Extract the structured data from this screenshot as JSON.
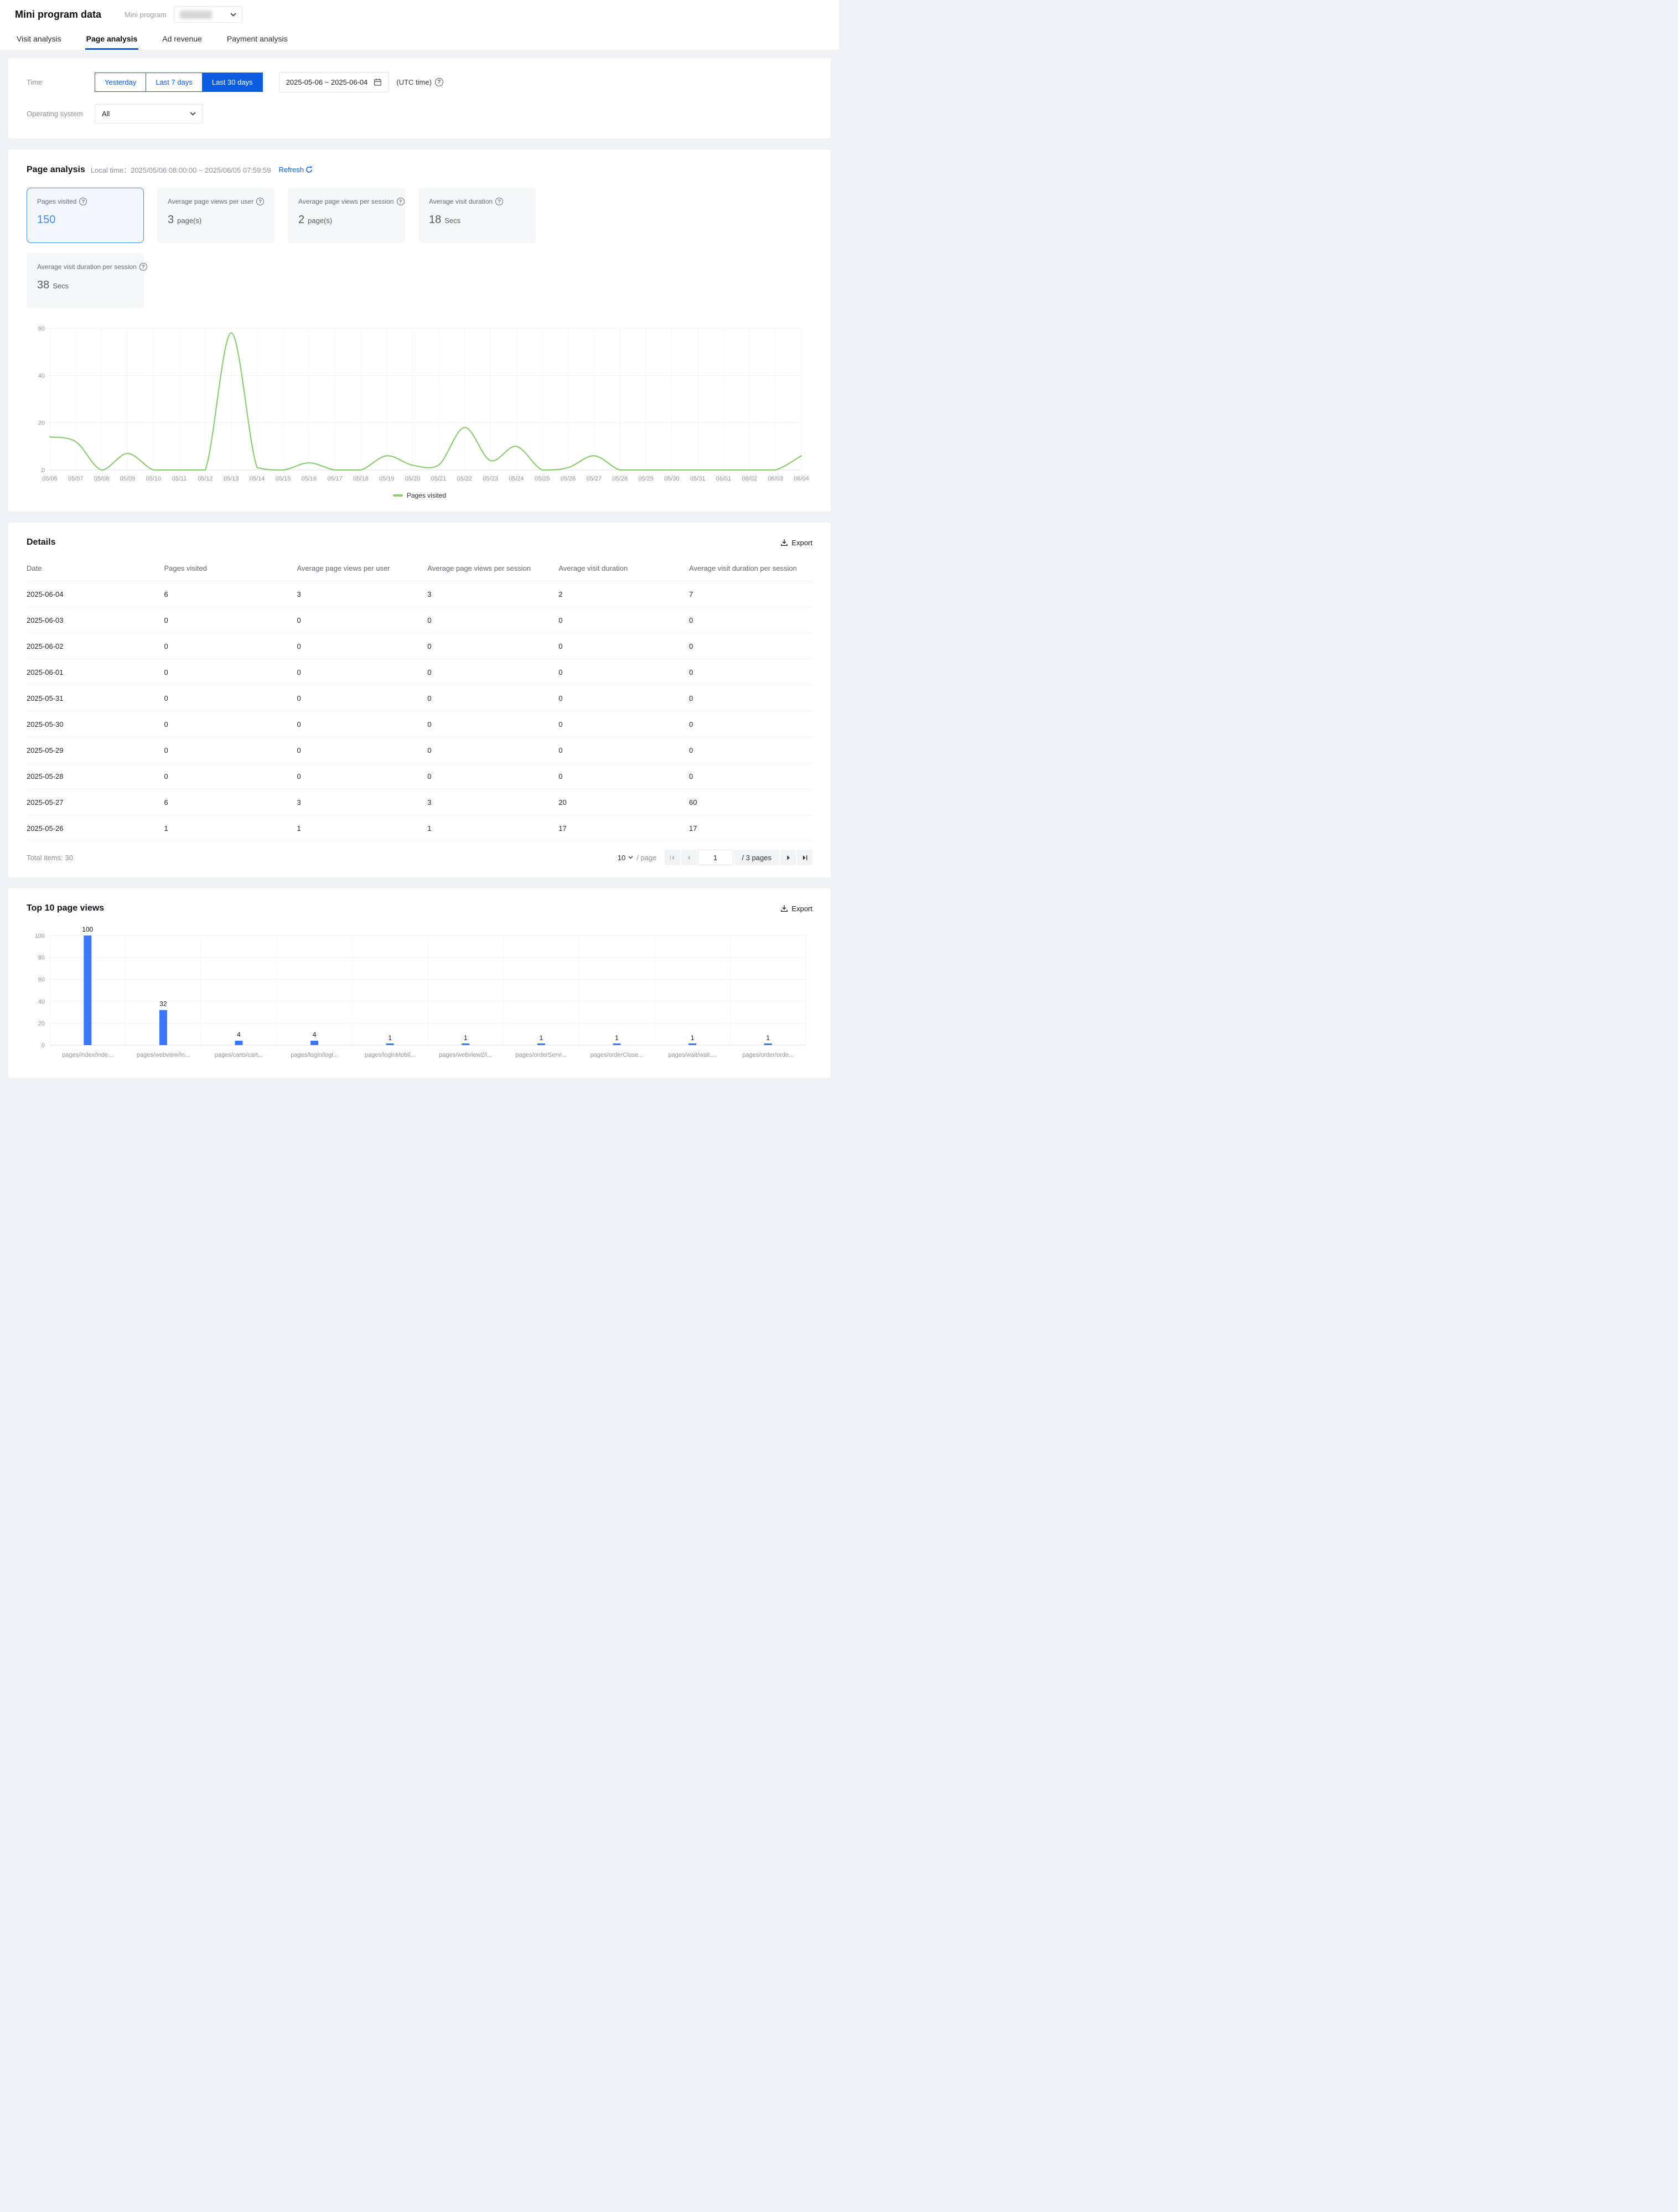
{
  "header": {
    "title": "Mini program data",
    "mini_program_label": "Mini program"
  },
  "tabs": [
    {
      "label": "Visit analysis",
      "active": false
    },
    {
      "label": "Page analysis",
      "active": true
    },
    {
      "label": "Ad revenue",
      "active": false
    },
    {
      "label": "Payment analysis",
      "active": false
    }
  ],
  "filters": {
    "time_label": "Time",
    "time_options": [
      "Yesterday",
      "Last 7 days",
      "Last 30 days"
    ],
    "time_active_index": 2,
    "date_range": "2025-05-06  ~ 2025-06-04",
    "utc_note": "(UTC time)",
    "os_label": "Operating system",
    "os_value": "All"
  },
  "page_analysis": {
    "title": "Page analysis",
    "local_time": "Local time：2025/05/06 08:00:00 ~ 2025/06/05 07:59:59",
    "refresh_label": "Refresh",
    "stat_cards": [
      {
        "label": "Pages visited",
        "value": "150",
        "unit": "",
        "selected": true
      },
      {
        "label": "Average page views per user",
        "value": "3",
        "unit": "page(s)",
        "selected": false
      },
      {
        "label": "Average page views per session",
        "value": "2",
        "unit": "page(s)",
        "selected": false
      },
      {
        "label": "Average visit duration",
        "value": "18",
        "unit": "Secs",
        "selected": false
      },
      {
        "label": "Average visit duration per session",
        "value": "38",
        "unit": "Secs",
        "selected": false
      }
    ]
  },
  "chart_data": [
    {
      "type": "line",
      "title": "Pages visited by day",
      "x": [
        "05/06",
        "05/07",
        "05/08",
        "05/09",
        "05/10",
        "05/11",
        "05/12",
        "05/13",
        "05/14",
        "05/15",
        "05/16",
        "05/17",
        "05/18",
        "05/19",
        "05/20",
        "05/21",
        "05/22",
        "05/23",
        "05/24",
        "05/25",
        "05/26",
        "05/27",
        "05/28",
        "05/29",
        "05/30",
        "05/31",
        "06/01",
        "06/02",
        "06/03",
        "06/04"
      ],
      "series": [
        {
          "name": "Pages visited",
          "values": [
            14,
            12,
            0,
            7,
            0,
            0,
            0,
            58,
            1,
            0,
            3,
            0,
            0,
            6,
            2,
            2,
            18,
            4,
            10,
            0,
            1,
            6,
            0,
            0,
            0,
            0,
            0,
            0,
            0,
            6
          ],
          "color": "#8fca75"
        }
      ],
      "ylim": [
        0,
        60
      ],
      "yticks": [
        0,
        20,
        40,
        60
      ],
      "grid": true,
      "legend_position": "bottom"
    },
    {
      "type": "bar",
      "title": "Top 10 page views",
      "categories": [
        "pages/index/inde...",
        "pages/webview/in...",
        "pages/carts/cart...",
        "pages/login/logi...",
        "pages/loginMobil...",
        "pages/webview2/i...",
        "pages/orderServi...",
        "pages/orderClose...",
        "pages/wait/wait....",
        "pages/order/orde..."
      ],
      "values": [
        100,
        32,
        4,
        4,
        1,
        1,
        1,
        1,
        1,
        1
      ],
      "bar_color": "#3b76f6",
      "ylim": [
        0,
        100
      ],
      "yticks": [
        0,
        20,
        40,
        60,
        80,
        100
      ],
      "grid": true
    }
  ],
  "details": {
    "title": "Details",
    "export_label": "Export",
    "columns": [
      "Date",
      "Pages visited",
      "Average page views per user",
      "Average page views per session",
      "Average visit duration",
      "Average visit duration per session"
    ],
    "rows": [
      [
        "2025-06-04",
        "6",
        "3",
        "3",
        "2",
        "7"
      ],
      [
        "2025-06-03",
        "0",
        "0",
        "0",
        "0",
        "0"
      ],
      [
        "2025-06-02",
        "0",
        "0",
        "0",
        "0",
        "0"
      ],
      [
        "2025-06-01",
        "0",
        "0",
        "0",
        "0",
        "0"
      ],
      [
        "2025-05-31",
        "0",
        "0",
        "0",
        "0",
        "0"
      ],
      [
        "2025-05-30",
        "0",
        "0",
        "0",
        "0",
        "0"
      ],
      [
        "2025-05-29",
        "0",
        "0",
        "0",
        "0",
        "0"
      ],
      [
        "2025-05-28",
        "0",
        "0",
        "0",
        "0",
        "0"
      ],
      [
        "2025-05-27",
        "6",
        "3",
        "3",
        "20",
        "60"
      ],
      [
        "2025-05-26",
        "1",
        "1",
        "1",
        "17",
        "17"
      ]
    ],
    "footer": {
      "total_label": "Total items: 30",
      "page_size": "10",
      "per_page_label": "/ page",
      "current_page": "1",
      "pages_label": "/ 3 pages"
    }
  },
  "top_pages": {
    "title": "Top 10 page views",
    "export_label": "Export"
  },
  "colors": {
    "accent_blue": "#0c5ce2",
    "stat_value_blue": "#4787f0",
    "line_green": "#8fca75",
    "bar_blue": "#3b76f6"
  }
}
